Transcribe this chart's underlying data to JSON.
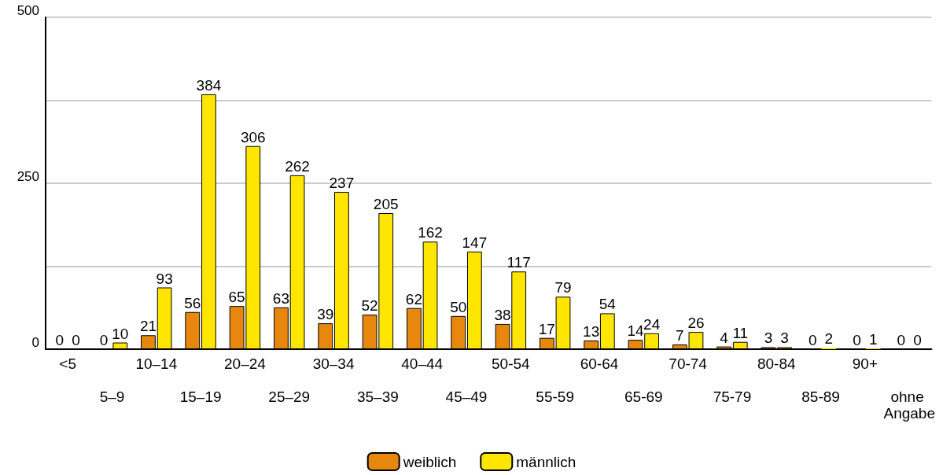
{
  "chart_data": {
    "type": "bar",
    "categories": [
      "<5",
      "5–9",
      "10–14",
      "15–19",
      "20–24",
      "25–29",
      "30–34",
      "35–39",
      "40–44",
      "45–49",
      "50-54",
      "55-59",
      "60-64",
      "65-69",
      "70-74",
      "75-79",
      "80-84",
      "85-89",
      "90+",
      "ohne Angabe"
    ],
    "series": [
      {
        "name": "weiblich",
        "color": "#e8870e",
        "values": [
          0,
          0,
          21,
          56,
          65,
          63,
          39,
          52,
          62,
          50,
          38,
          17,
          13,
          14,
          7,
          4,
          3,
          0,
          0,
          0
        ]
      },
      {
        "name": "männlich",
        "color": "#ffe600",
        "values": [
          0,
          10,
          93,
          384,
          306,
          262,
          237,
          205,
          162,
          147,
          117,
          79,
          54,
          24,
          26,
          11,
          3,
          2,
          1,
          0
        ]
      }
    ],
    "ylim": [
      0,
      500
    ],
    "yticks": [
      0,
      {
        "value": 125,
        "label": null
      },
      250,
      {
        "value": 375,
        "label": null
      },
      500
    ],
    "grid": "y",
    "legend": "bottom",
    "data_labels": true
  }
}
